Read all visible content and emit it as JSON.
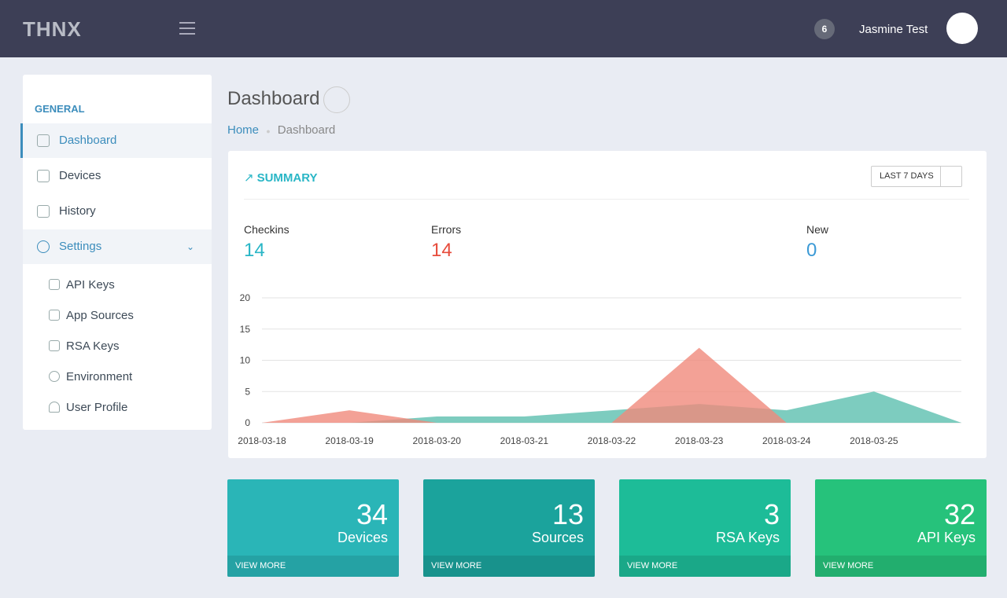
{
  "header": {
    "logo": "THNX",
    "badge": "6",
    "user": "Jasmine Test"
  },
  "sidebar": {
    "section": "GENERAL",
    "items": [
      "Dashboard",
      "Devices",
      "History",
      "Settings"
    ],
    "subitems": [
      "API Keys",
      "App Sources",
      "RSA Keys",
      "Environment",
      "User Profile"
    ]
  },
  "page": {
    "title": "Dashboard",
    "breadcrumb": [
      "Home",
      "Dashboard"
    ]
  },
  "summary": {
    "title": "SUMMARY",
    "range": "LAST 7 DAYS",
    "checkins": 14,
    "errors": 14,
    "new_label": "New",
    "new": 0
  },
  "chart_data": {
    "type": "area",
    "categories": [
      "2018-03-18",
      "2018-03-19",
      "2018-03-20",
      "2018-03-21",
      "2018-03-22",
      "2018-03-23",
      "2018-03-24",
      "2018-03-25",
      null
    ],
    "series": [
      {
        "name": "Checkins",
        "color": "#5dbfaf",
        "values": [
          0,
          0,
          1,
          1,
          2,
          3,
          2,
          5,
          0
        ]
      },
      {
        "name": "Errors",
        "color": "#f08a7c",
        "values": [
          0,
          2,
          0,
          0,
          0,
          12,
          0,
          0,
          0
        ]
      }
    ],
    "ylim": [
      0,
      20
    ],
    "yticks": [
      0,
      5,
      10,
      15,
      20
    ],
    "grid": true
  },
  "cards": [
    {
      "value": 34,
      "label": "Devices",
      "link": "VIEW MORE",
      "color": "#2ab5b7"
    },
    {
      "value": 13,
      "label": "Sources",
      "link": "VIEW MORE",
      "color": "#1ba39c"
    },
    {
      "value": 3,
      "label": "RSA Keys",
      "link": "VIEW MORE",
      "color": "#1dbc98"
    },
    {
      "value": 32,
      "label": "API Keys",
      "link": "VIEW MORE",
      "color": "#26c27b"
    }
  ]
}
